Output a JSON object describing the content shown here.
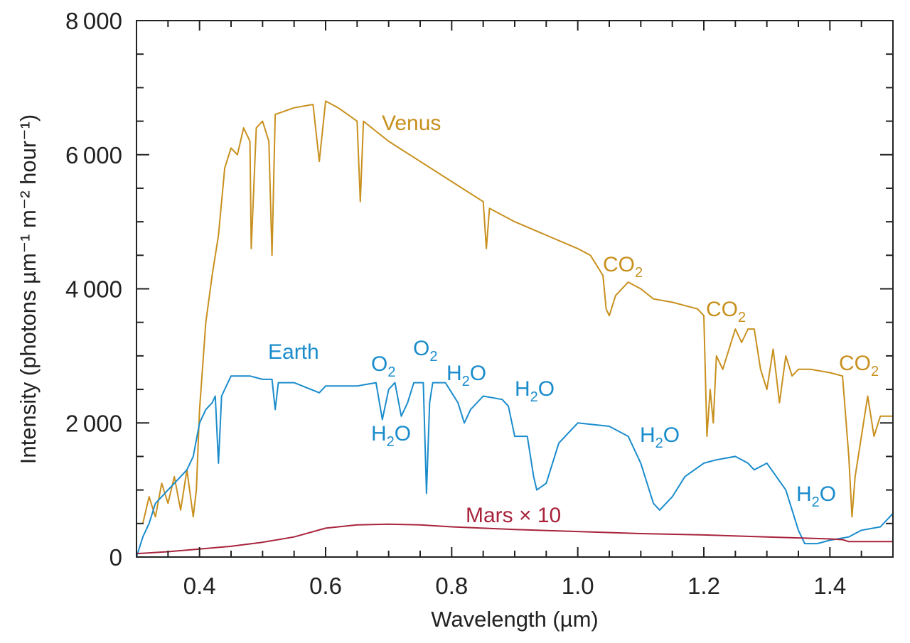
{
  "chart_data": {
    "type": "line",
    "xlabel": "Wavelength (µm)",
    "ylabel": "Intensity (photons µm⁻¹ m⁻² hour⁻¹)",
    "xlim": [
      0.3,
      1.5
    ],
    "ylim": [
      0,
      8000
    ],
    "xticks": [
      "0.4",
      "0.6",
      "0.8",
      "1.0",
      "1.2",
      "1.4"
    ],
    "xtick_values": [
      0.4,
      0.6,
      0.8,
      1.0,
      1.2,
      1.4
    ],
    "yticks": [
      "0",
      "2000",
      "4000",
      "6000",
      "8000"
    ],
    "ytick_values": [
      0,
      2000,
      4000,
      6000,
      8000
    ],
    "grid": false,
    "series": [
      {
        "name": "Venus",
        "color": "#c8901e",
        "x": [
          0.31,
          0.32,
          0.33,
          0.34,
          0.35,
          0.36,
          0.37,
          0.38,
          0.39,
          0.395,
          0.4,
          0.41,
          0.42,
          0.43,
          0.44,
          0.45,
          0.46,
          0.47,
          0.48,
          0.482,
          0.49,
          0.5,
          0.51,
          0.515,
          0.52,
          0.55,
          0.58,
          0.59,
          0.6,
          0.62,
          0.65,
          0.655,
          0.66,
          0.7,
          0.75,
          0.8,
          0.85,
          0.855,
          0.86,
          0.9,
          0.95,
          1.0,
          1.02,
          1.04,
          1.045,
          1.05,
          1.06,
          1.08,
          1.1,
          1.12,
          1.15,
          1.19,
          1.2,
          1.205,
          1.21,
          1.215,
          1.22,
          1.23,
          1.25,
          1.26,
          1.27,
          1.28,
          1.29,
          1.3,
          1.31,
          1.32,
          1.33,
          1.34,
          1.35,
          1.37,
          1.4,
          1.42,
          1.43,
          1.435,
          1.44,
          1.46,
          1.47,
          1.48,
          1.5
        ],
        "y": [
          500,
          900,
          600,
          1100,
          800,
          1200,
          700,
          1300,
          600,
          1000,
          2200,
          3500,
          4200,
          4800,
          5800,
          6100,
          6000,
          6400,
          6200,
          4600,
          6400,
          6500,
          6200,
          4500,
          6600,
          6700,
          6750,
          5900,
          6800,
          6700,
          6500,
          5300,
          6500,
          6200,
          5900,
          5600,
          5300,
          4600,
          5200,
          5000,
          4800,
          4600,
          4500,
          4200,
          3700,
          3600,
          3900,
          4100,
          4000,
          3850,
          3800,
          3700,
          3600,
          1800,
          2500,
          2000,
          3000,
          2800,
          3400,
          3200,
          3400,
          3400,
          2800,
          2500,
          3100,
          2300,
          3000,
          2700,
          2800,
          2800,
          2750,
          2700,
          1500,
          600,
          1200,
          2400,
          1800,
          2100,
          2100
        ]
      },
      {
        "name": "Earth",
        "color": "#1a8ccc",
        "x": [
          0.3,
          0.31,
          0.32,
          0.33,
          0.34,
          0.35,
          0.36,
          0.37,
          0.38,
          0.39,
          0.4,
          0.41,
          0.42,
          0.425,
          0.43,
          0.435,
          0.44,
          0.45,
          0.48,
          0.5,
          0.515,
          0.52,
          0.525,
          0.55,
          0.59,
          0.6,
          0.65,
          0.68,
          0.69,
          0.7,
          0.71,
          0.72,
          0.73,
          0.74,
          0.755,
          0.76,
          0.765,
          0.77,
          0.79,
          0.81,
          0.82,
          0.83,
          0.85,
          0.88,
          0.89,
          0.9,
          0.92,
          0.93,
          0.935,
          0.95,
          0.97,
          1.0,
          1.05,
          1.08,
          1.1,
          1.12,
          1.13,
          1.15,
          1.17,
          1.2,
          1.22,
          1.25,
          1.27,
          1.28,
          1.3,
          1.33,
          1.35,
          1.36,
          1.38,
          1.4,
          1.43,
          1.45,
          1.48,
          1.5
        ],
        "y": [
          0,
          300,
          500,
          800,
          900,
          1000,
          1100,
          1200,
          1300,
          1500,
          2000,
          2200,
          2300,
          2400,
          1400,
          2400,
          2500,
          2700,
          2700,
          2650,
          2650,
          2200,
          2600,
          2600,
          2450,
          2550,
          2550,
          2600,
          2050,
          2500,
          2600,
          2100,
          2300,
          2600,
          2600,
          950,
          2300,
          2600,
          2600,
          2300,
          2000,
          2200,
          2400,
          2350,
          2250,
          1800,
          1800,
          1200,
          1000,
          1100,
          1700,
          2000,
          1950,
          1800,
          1400,
          800,
          700,
          900,
          1200,
          1400,
          1450,
          1500,
          1400,
          1300,
          1400,
          1000,
          400,
          200,
          200,
          250,
          300,
          400,
          450,
          650
        ]
      },
      {
        "name": "Mars × 10",
        "color": "#a8243c",
        "x": [
          0.3,
          0.35,
          0.4,
          0.45,
          0.5,
          0.55,
          0.6,
          0.65,
          0.7,
          0.75,
          0.8,
          0.85,
          0.9,
          1.0,
          1.1,
          1.2,
          1.3,
          1.4,
          1.42,
          1.43,
          1.5
        ],
        "y": [
          50,
          80,
          120,
          160,
          220,
          300,
          430,
          480,
          490,
          480,
          450,
          430,
          410,
          380,
          350,
          330,
          300,
          270,
          260,
          230,
          230
        ]
      }
    ],
    "annotations": [
      {
        "text": "Venus",
        "sub": ""
      },
      {
        "text": "Earth",
        "sub": ""
      },
      {
        "text": "Mars × 10",
        "sub": ""
      },
      {
        "text": "CO",
        "sub": "2"
      },
      {
        "text": "CO",
        "sub": "2"
      },
      {
        "text": "CO",
        "sub": "2"
      },
      {
        "text": "O",
        "sub": "2"
      },
      {
        "text": "O",
        "sub": "2"
      },
      {
        "text": "H",
        "sub": "2",
        "tail": "O"
      },
      {
        "text": "H",
        "sub": "2",
        "tail": "O"
      },
      {
        "text": "H",
        "sub": "2",
        "tail": "O"
      },
      {
        "text": "H",
        "sub": "2",
        "tail": "O"
      },
      {
        "text": "H",
        "sub": "2",
        "tail": "O"
      }
    ]
  }
}
